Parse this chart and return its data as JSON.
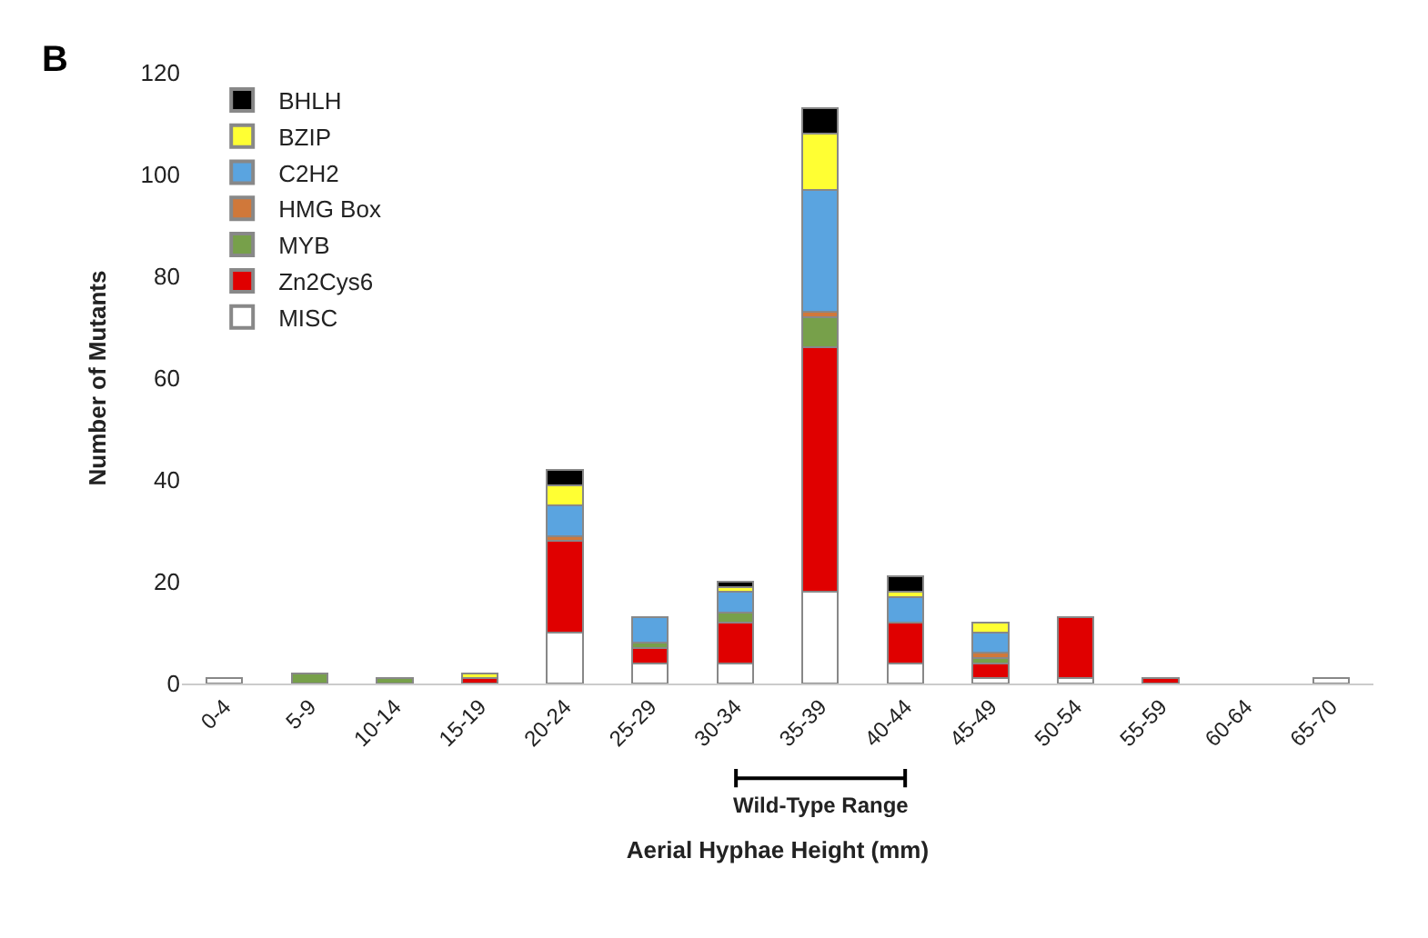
{
  "chart_data": {
    "type": "bar",
    "stacked": true,
    "xlabel": "Aerial Hyphae Height (mm)",
    "ylabel": "Number of Mutants",
    "annotations": [
      "B",
      "Wild-Type Range"
    ],
    "categories": [
      "0-4",
      "5-9",
      "10-14",
      "15-19",
      "20-24",
      "25-29",
      "30-34",
      "35-39",
      "40-44",
      "45-49",
      "50-54",
      "55-59",
      "60-64",
      "65-70"
    ],
    "series": [
      {
        "name": "MISC",
        "color": "#ffffff",
        "values": [
          1,
          0,
          0,
          0,
          10,
          4,
          4,
          18,
          4,
          1,
          1,
          0,
          0,
          1
        ]
      },
      {
        "name": "Zn2Cys6",
        "color": "#e00000",
        "values": [
          0,
          0,
          0,
          1,
          18,
          3,
          8,
          48,
          8,
          3,
          12,
          1,
          0,
          0
        ]
      },
      {
        "name": "MYB",
        "color": "#77a04a",
        "values": [
          0,
          2,
          1,
          0,
          0,
          1,
          2,
          6,
          0,
          1,
          0,
          0,
          0,
          0
        ]
      },
      {
        "name": "HMG Box",
        "color": "#d0783a",
        "values": [
          0,
          0,
          0,
          0,
          1,
          0,
          0,
          1,
          0,
          1,
          0,
          0,
          0,
          0
        ]
      },
      {
        "name": "C2H2",
        "color": "#5aa4e0",
        "values": [
          0,
          0,
          0,
          0,
          6,
          5,
          4,
          24,
          5,
          4,
          0,
          0,
          0,
          0
        ]
      },
      {
        "name": "BZIP",
        "color": "#ffff33",
        "values": [
          0,
          0,
          0,
          1,
          4,
          0,
          1,
          11,
          1,
          2,
          0,
          0,
          0,
          0
        ]
      },
      {
        "name": "BHLH",
        "color": "#000000",
        "values": [
          0,
          0,
          0,
          0,
          3,
          0,
          1,
          5,
          3,
          0,
          0,
          0,
          0,
          0
        ]
      }
    ],
    "ylim": [
      0,
      120
    ],
    "yticks": [
      0,
      20,
      40,
      60,
      80,
      100,
      120
    ],
    "legend": "top left"
  }
}
